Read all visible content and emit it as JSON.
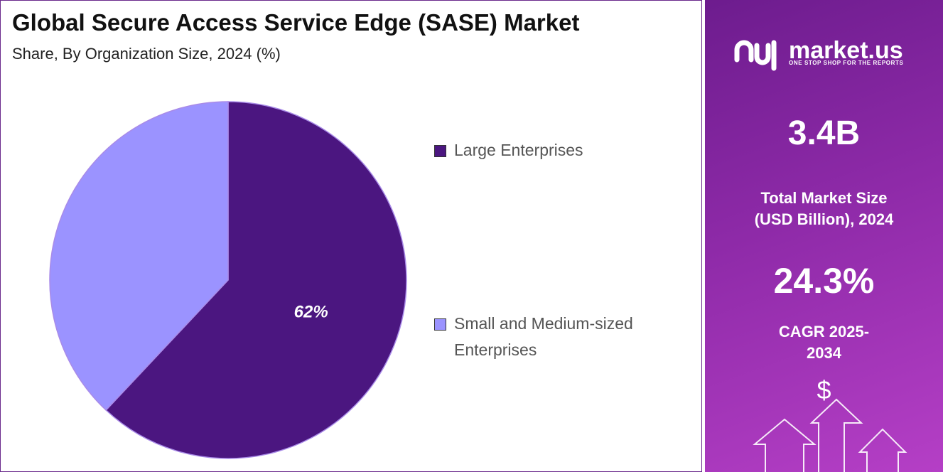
{
  "chart_data": {
    "type": "pie",
    "title": "Global Secure Access Service Edge (SASE) Market",
    "subtitle": "Share, By Organization Size, 2024 (%)",
    "categories": [
      "Large Enterprises",
      "Small and Medium-sized Enterprises"
    ],
    "values": [
      62,
      38
    ],
    "value_labels": [
      "62%",
      null
    ],
    "colors": [
      "#4b1680",
      "#9b93ff"
    ],
    "legend": "right"
  },
  "panel": {
    "brand": "market.us",
    "tagline": "ONE STOP SHOP FOR THE REPORTS",
    "market_size": "3.4B",
    "market_size_label": "Total Market Size (USD Billion), 2024",
    "cagr": "24.3%",
    "cagr_label": "CAGR 2025-2034",
    "icon": "$"
  }
}
